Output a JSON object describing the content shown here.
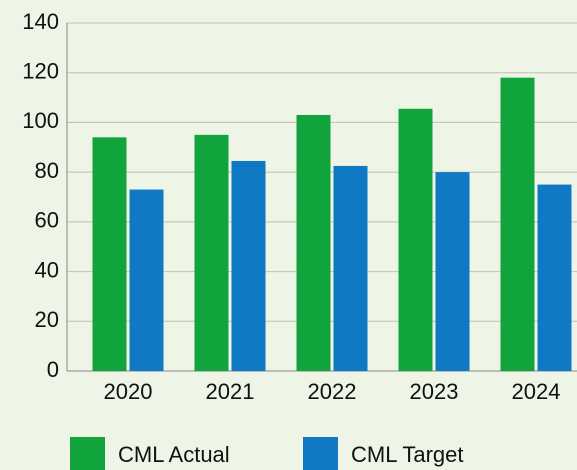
{
  "chart_data": {
    "type": "bar",
    "categories": [
      "2020",
      "2021",
      "2022",
      "2023",
      "2024"
    ],
    "series": [
      {
        "name": "CML Actual",
        "color": "#11a33c",
        "values": [
          94,
          95,
          103,
          105.5,
          118
        ]
      },
      {
        "name": "CML Target",
        "color": "#0f79c4",
        "values": [
          73,
          84.5,
          82.5,
          80,
          75
        ]
      }
    ],
    "ylim": [
      0,
      140
    ],
    "yticks": [
      0,
      20,
      40,
      60,
      80,
      100,
      120,
      140
    ],
    "grid": true,
    "legend": "bottom"
  }
}
